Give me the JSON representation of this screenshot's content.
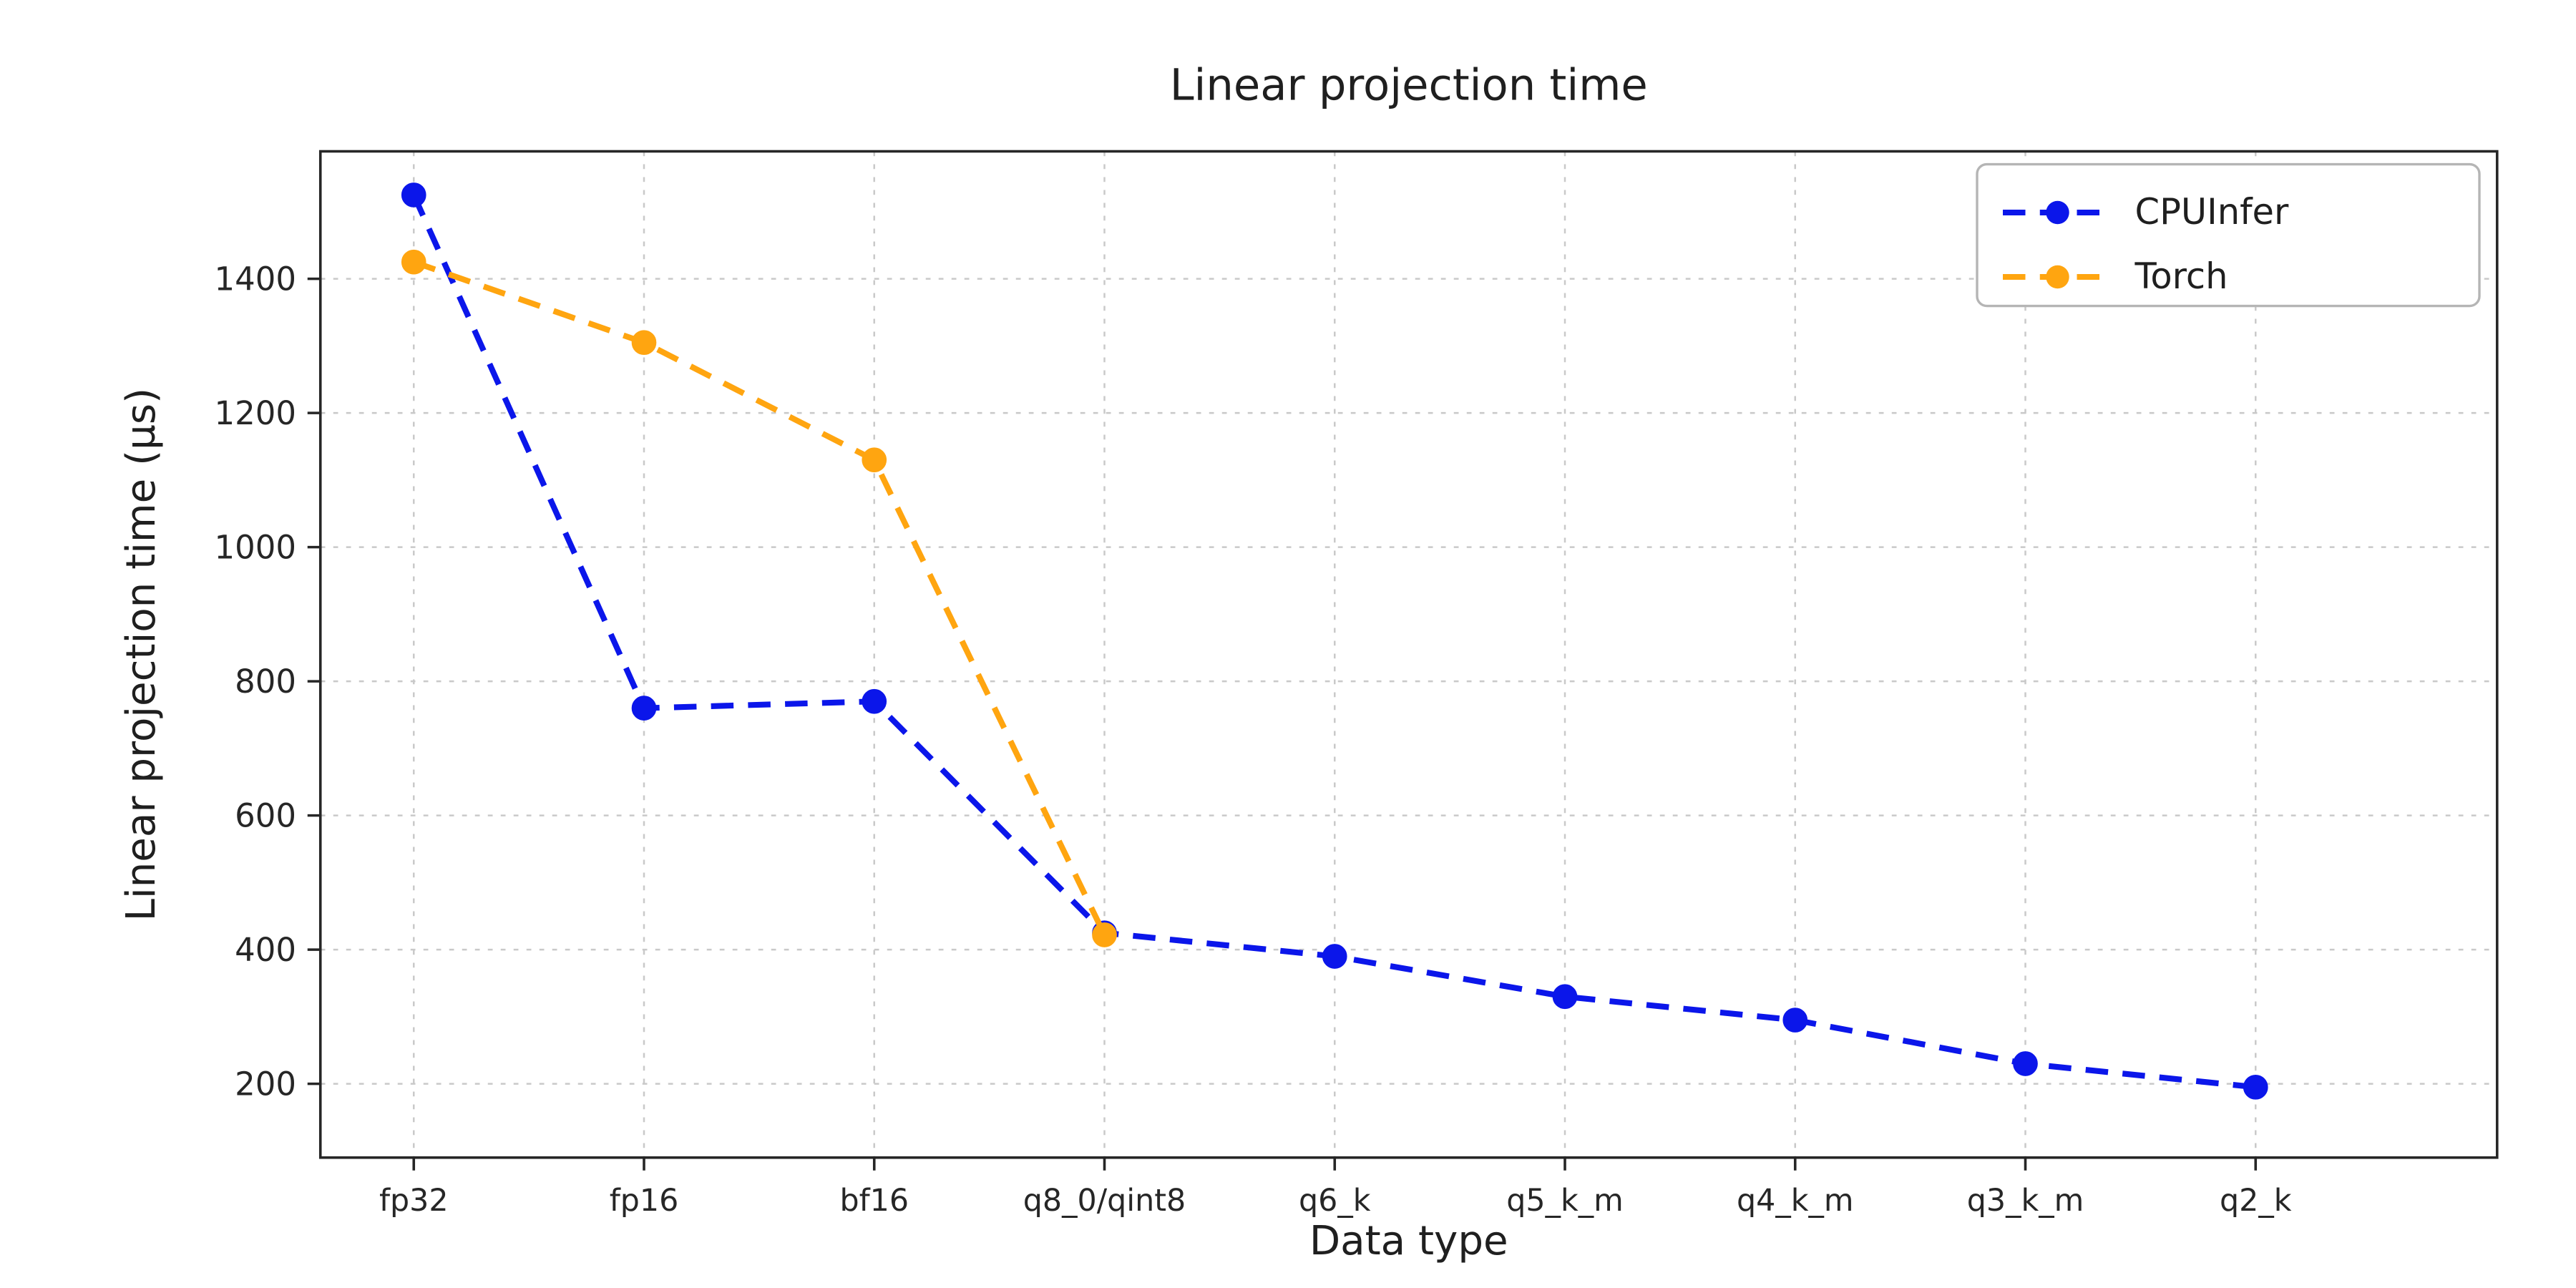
{
  "chart_data": {
    "type": "line",
    "title": "Linear projection time",
    "xlabel": "Data type",
    "ylabel": "Linear projection time (µs)",
    "categories": [
      "fp32",
      "fp16",
      "bf16",
      "q8_0/qint8",
      "q6_k",
      "q5_k_m",
      "q4_k_m",
      "q3_k_m",
      "q2_k"
    ],
    "series": [
      {
        "name": "CPUInfer",
        "color": "#0b16ea",
        "line_style": "dashed",
        "marker": "circle",
        "values": [
          1525,
          760,
          770,
          425,
          390,
          330,
          295,
          230,
          195
        ]
      },
      {
        "name": "Torch",
        "color": "#ffa510",
        "line_style": "dashed",
        "marker": "circle",
        "values": [
          1425,
          1305,
          1130,
          422,
          null,
          null,
          null,
          null,
          null
        ]
      }
    ],
    "ylim": [
      90,
      1590
    ],
    "yticks": [
      200,
      400,
      600,
      800,
      1000,
      1200,
      1400
    ],
    "grid": true,
    "grid_style": "dashed",
    "grid_color": "#c9c9c9",
    "axis_color": "#262626",
    "legend_position": "upper right",
    "legend_entries": [
      "CPUInfer",
      "Torch"
    ]
  }
}
